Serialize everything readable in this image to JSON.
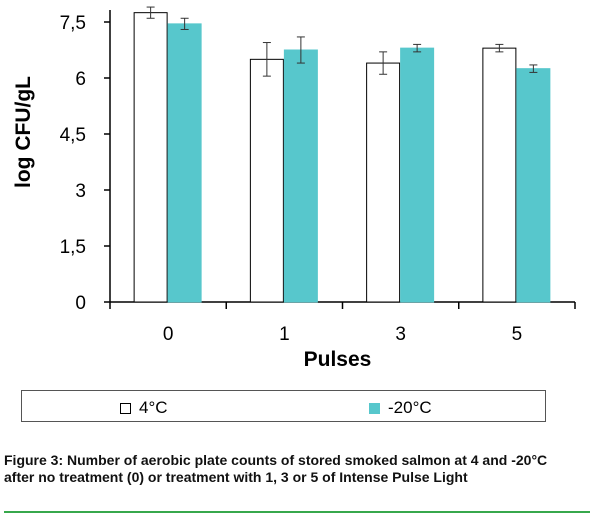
{
  "chart_data": {
    "type": "bar",
    "categories": [
      "0",
      "1",
      "3",
      "5"
    ],
    "series": [
      {
        "name": "4°C",
        "values": [
          7.75,
          6.5,
          6.4,
          6.8
        ],
        "errors": [
          0.15,
          0.45,
          0.3,
          0.1
        ],
        "color": "#ffffff",
        "stroke": "#000000"
      },
      {
        "name": "-20°C",
        "values": [
          7.45,
          6.75,
          6.8,
          6.25
        ],
        "errors": [
          0.15,
          0.35,
          0.1,
          0.1
        ],
        "color": "#57c7cc",
        "stroke": "#57c7cc"
      }
    ],
    "xlabel": "Pulses",
    "ylabel": "log CFU/gL",
    "ylim": [
      0,
      7.5
    ],
    "yticks": [
      0,
      1.5,
      3,
      4.5,
      6,
      7.5
    ],
    "ytick_labels": [
      "0",
      "1,5",
      "3",
      "4,5",
      "6",
      "7,5"
    ],
    "legend_position": "bottom",
    "grid": false
  },
  "caption": "Figure 3: Number of aerobic plate counts of stored smoked salmon at 4 and -20°C after no treatment (0) or treatment with 1, 3 or 5 of Intense Pulse Light",
  "colors": {
    "accent_rule": "#37a84c"
  }
}
